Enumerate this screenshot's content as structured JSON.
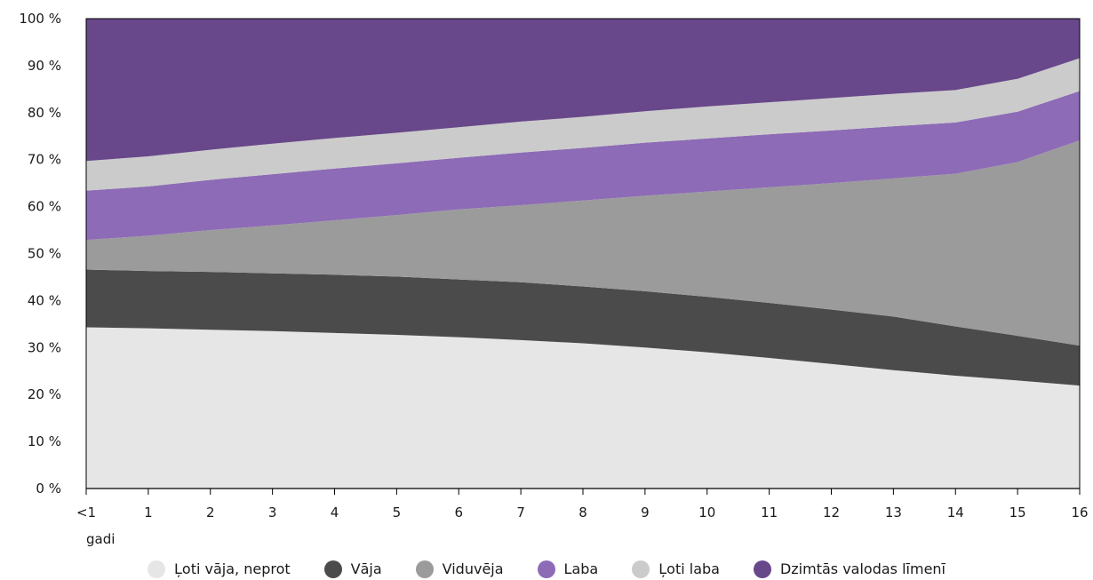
{
  "chart_data": {
    "type": "area",
    "stacked": true,
    "normalized": true,
    "x": [
      "<1",
      "1",
      "2",
      "3",
      "4",
      "5",
      "6",
      "7",
      "8",
      "9",
      "10",
      "11",
      "12",
      "13",
      "14",
      "15",
      "16"
    ],
    "xlabel": "gadi",
    "ylabel": "",
    "ylim": [
      0,
      100
    ],
    "yticks": [
      "0 %",
      "10 %",
      "20 %",
      "30 %",
      "40 %",
      "50 %",
      "60 %",
      "70 %",
      "80 %",
      "90 %",
      "100 %"
    ],
    "grid": false,
    "legend_position": "bottom",
    "series": [
      {
        "name": "Ļoti vāja, neprot",
        "color": "#e6e6e6",
        "values": [
          34.3,
          34.1,
          33.8,
          33.5,
          33.1,
          32.7,
          32.2,
          31.6,
          30.9,
          30.0,
          29.0,
          27.8,
          26.5,
          25.2,
          24.0,
          23.0,
          21.9
        ]
      },
      {
        "name": "Vāja",
        "color": "#4b4b4b",
        "values": [
          12.3,
          12.2,
          12.3,
          12.3,
          12.4,
          12.4,
          12.3,
          12.3,
          12.1,
          12.0,
          11.8,
          11.7,
          11.6,
          11.4,
          10.5,
          9.5,
          8.5
        ]
      },
      {
        "name": "Viduvēja",
        "color": "#9b9b9b",
        "values": [
          6.3,
          7.5,
          8.9,
          10.2,
          11.6,
          13.1,
          14.9,
          16.4,
          18.3,
          20.3,
          22.4,
          24.6,
          26.9,
          29.4,
          32.5,
          37.0,
          43.7
        ]
      },
      {
        "name": "Laba",
        "color": "#8d6bb6",
        "values": [
          10.5,
          10.5,
          10.7,
          10.9,
          11.0,
          11.0,
          11.0,
          11.2,
          11.2,
          11.3,
          11.3,
          11.3,
          11.2,
          11.1,
          10.9,
          10.7,
          10.5
        ]
      },
      {
        "name": "Ļoti laba",
        "color": "#cbcbcb",
        "values": [
          6.3,
          6.4,
          6.4,
          6.5,
          6.5,
          6.5,
          6.5,
          6.6,
          6.6,
          6.7,
          6.8,
          6.8,
          6.9,
          6.9,
          6.9,
          7.0,
          7.0
        ]
      },
      {
        "name": "Dzimtās valodas līmenī",
        "color": "#68478a",
        "values": [
          30.3,
          29.3,
          27.9,
          26.6,
          25.4,
          24.3,
          23.1,
          21.9,
          20.9,
          19.7,
          18.7,
          17.8,
          16.9,
          16.0,
          15.2,
          12.8,
          8.4
        ]
      }
    ]
  }
}
